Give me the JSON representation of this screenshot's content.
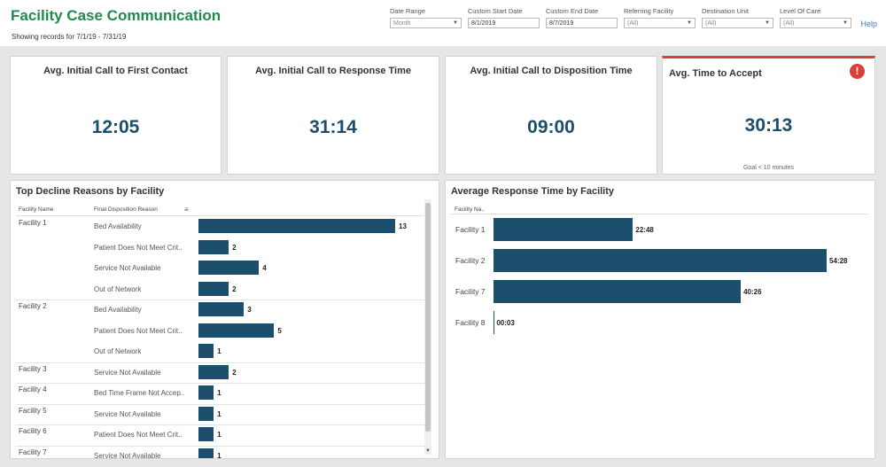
{
  "header": {
    "title": "Facility Case Communication",
    "subtitle": "Showing records for 7/1/19 - 7/31/19",
    "help": "Help",
    "filters": [
      {
        "label": "Date Range",
        "value": "Month",
        "type": "select"
      },
      {
        "label": "Custom Start Date",
        "value": "8/1/2019",
        "type": "text"
      },
      {
        "label": "Custom End Date",
        "value": "8/7/2019",
        "type": "text"
      },
      {
        "label": "Referring Facility",
        "value": "(All)",
        "type": "select"
      },
      {
        "label": "Destination Unit",
        "value": "(All)",
        "type": "select"
      },
      {
        "label": "Level Of Care",
        "value": "(All)",
        "type": "select"
      }
    ]
  },
  "kpis": [
    {
      "title": "Avg. Initial Call to First Contact",
      "value": "12:05"
    },
    {
      "title": "Avg. Initial Call to Response Time",
      "value": "31:14"
    },
    {
      "title": "Avg. Initial Call to Disposition Time",
      "value": "09:00"
    },
    {
      "title": "Avg. Time to Accept",
      "value": "30:13",
      "goal": "Goal < 10 minutes",
      "alert_icon": "!"
    }
  ],
  "decline_panel": {
    "title": "Top Decline Reasons by Facility",
    "col_facility": "Facility Name",
    "col_reason": "Final Disposition Reason",
    "rows": [
      {
        "facility": "Facility 1",
        "reason": "Bed Availability",
        "value": 13
      },
      {
        "facility": "",
        "reason": "Patient Does Not Meet Crit..",
        "value": 2
      },
      {
        "facility": "",
        "reason": "Service Not Available",
        "value": 4
      },
      {
        "facility": "",
        "reason": "Out of Network",
        "value": 2
      },
      {
        "facility": "Facility 2",
        "reason": "Bed Availability",
        "value": 3
      },
      {
        "facility": "",
        "reason": "Patient Does Not Meet Crit..",
        "value": 5
      },
      {
        "facility": "",
        "reason": "Out of Network",
        "value": 1
      },
      {
        "facility": "Facility 3",
        "reason": "Service Not Available",
        "value": 2
      },
      {
        "facility": "Facility 4",
        "reason": "Bed Time Frame Not Accep..",
        "value": 1
      },
      {
        "facility": "Facility 5",
        "reason": "Service Not Available",
        "value": 1
      },
      {
        "facility": "Facility 6",
        "reason": "Patient Does Not Meet Crit..",
        "value": 1
      },
      {
        "facility": "Facility 7",
        "reason": "Service Not Available",
        "value": 1
      }
    ]
  },
  "response_panel": {
    "title": "Average Response Time by Facility",
    "col_facility": "Facility Na..",
    "rows": [
      {
        "facility": "Facility 1",
        "label": "22:48",
        "seconds": 1368
      },
      {
        "facility": "Facility 2",
        "label": "54:28",
        "seconds": 3268
      },
      {
        "facility": "Facility 7",
        "label": "40:26",
        "seconds": 2426
      },
      {
        "facility": "Facility 8",
        "label": "00:03",
        "seconds": 3
      }
    ]
  },
  "colors": {
    "title_green": "#1f8a4c",
    "bar": "#1c4e6e",
    "kpi_value": "#1b4e6b",
    "alert": "#d9403a",
    "link": "#2e7dc8"
  }
}
